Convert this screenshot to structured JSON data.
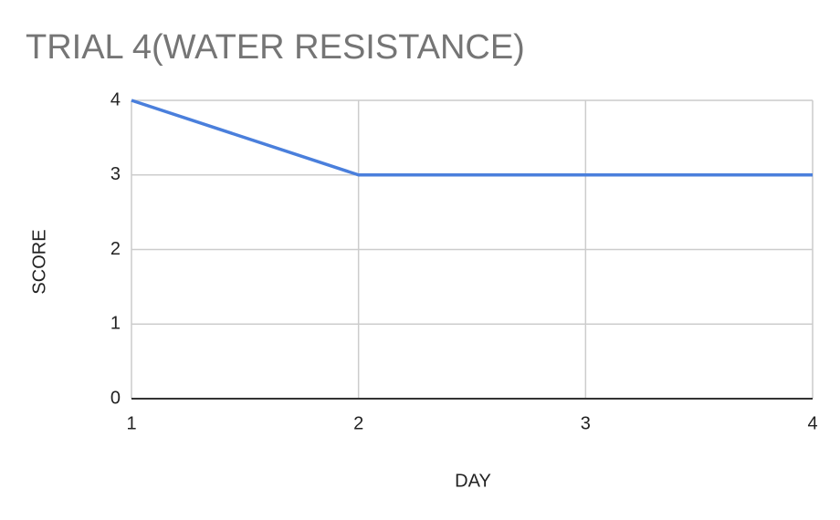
{
  "chart_data": {
    "type": "line",
    "title": "TRIAL 4(WATER RESISTANCE)",
    "x_label": "DAY",
    "y_label": "SCORE",
    "x": [
      1,
      2,
      3,
      4
    ],
    "values": [
      4,
      3,
      3,
      3
    ],
    "color": "#4a7fdc",
    "xlim": [
      1,
      4
    ],
    "xticks": [
      1,
      2,
      3,
      4
    ],
    "ylim": [
      0,
      4
    ],
    "yticks": [
      0,
      1,
      2,
      3,
      4
    ],
    "grid": true
  }
}
